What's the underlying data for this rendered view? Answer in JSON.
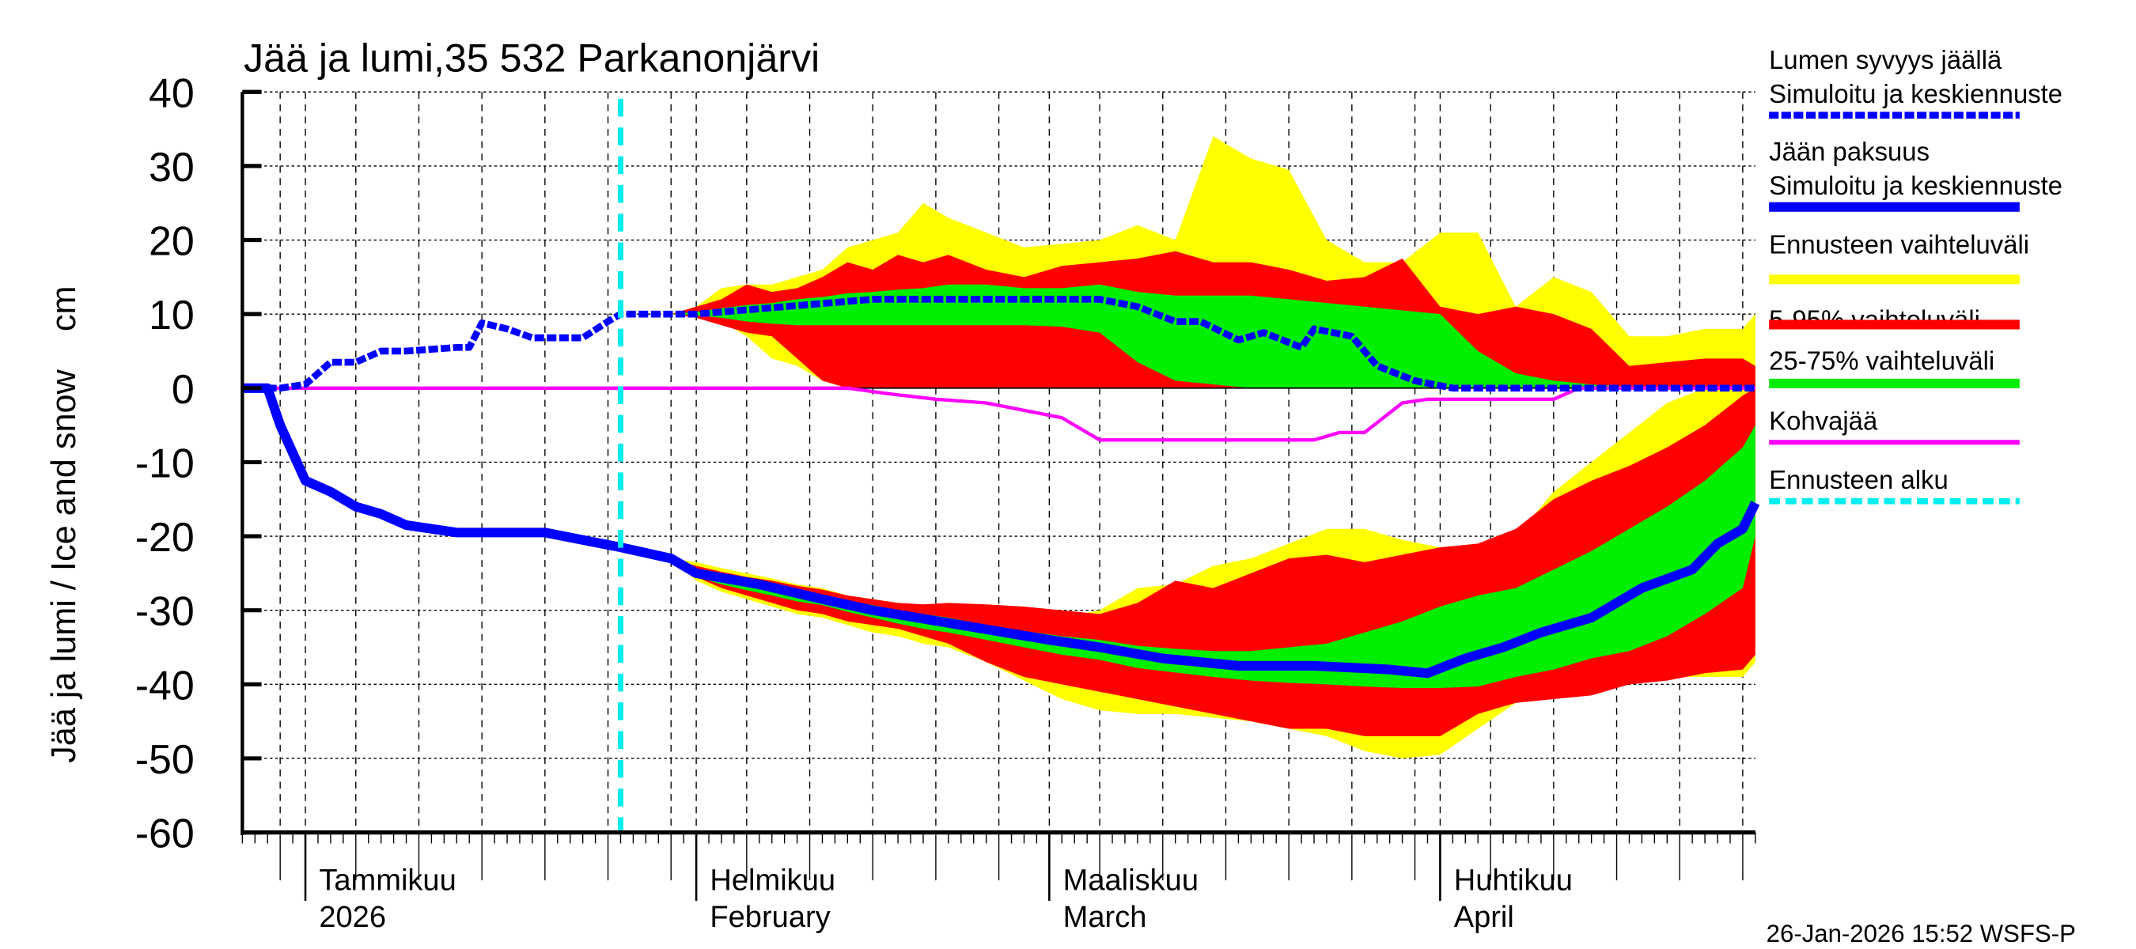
{
  "chart_data": {
    "type": "area",
    "title": "Jää ja lumi,35 532 Parkanonjärvi",
    "ylabel": "Jää ja lumi / Ice and snow    cm",
    "xlabel": "",
    "ylim": [
      -60,
      40
    ],
    "yticks": [
      40,
      30,
      20,
      10,
      0,
      -10,
      -20,
      -30,
      -40,
      -50,
      -60
    ],
    "xlim": [
      "2025-12-27",
      "2026-04-26"
    ],
    "grid": true,
    "legend_position": "right",
    "month_labels": [
      {
        "date": "2026-01-01",
        "line1": "Tammikuu",
        "line2": "2026"
      },
      {
        "date": "2026-02-01",
        "line1": "Helmikuu",
        "line2": "February"
      },
      {
        "date": "2026-03-01",
        "line1": "Maaliskuu",
        "line2": "March"
      },
      {
        "date": "2026-04-01",
        "line1": "Huhtikuu",
        "line2": "April"
      }
    ],
    "forecast_start": "2026-01-26",
    "timestamp": "26-Jan-2026 15:52 WSFS-P",
    "colors": {
      "snow_line": "#0000ff",
      "ice_line": "#0000ff",
      "range_full": "#ffff00",
      "range_5_95": "#ff0000",
      "range_25_75": "#00ee00",
      "kohva": "#ff00ff",
      "forecast_start": "#00eeee"
    },
    "legend": [
      {
        "line1": "Lumen syvyys jäällä",
        "line2": "Simuloitu ja keskiennuste",
        "key": "snow"
      },
      {
        "line1": "Jään paksuus",
        "line2": "Simuloitu ja keskiennuste",
        "key": "ice"
      },
      {
        "line1": "Ennusteen vaihteluväli",
        "key": "range_full"
      },
      {
        "line1": "5-95% vaihteluväli",
        "key": "range_5_95"
      },
      {
        "line1": "25-75% vaihteluväli",
        "key": "range_25_75"
      },
      {
        "line1": "Kohvajää",
        "key": "kohva"
      },
      {
        "line1": "Ennusteen alku",
        "key": "forecast_start"
      }
    ],
    "series": [
      {
        "name": "Lumen syvyys jäällä",
        "key": "snow",
        "x": [
          "2025-12-27",
          "2025-12-30",
          "2026-01-01",
          "2026-01-03",
          "2026-01-05",
          "2026-01-07",
          "2026-01-09",
          "2026-01-13",
          "2026-01-14",
          "2026-01-15",
          "2026-01-17",
          "2026-01-19",
          "2026-01-23",
          "2026-01-25",
          "2026-01-26",
          "2026-02-01",
          "2026-02-15",
          "2026-03-05",
          "2026-03-08",
          "2026-03-11",
          "2026-03-13",
          "2026-03-16",
          "2026-03-18",
          "2026-03-21",
          "2026-03-22",
          "2026-03-25",
          "2026-03-27",
          "2026-03-30",
          "2026-04-02",
          "2026-04-26"
        ],
        "y": [
          0,
          0,
          0.5,
          3.5,
          3.5,
          5,
          5,
          5.5,
          5.5,
          8.8,
          8,
          6.8,
          6.8,
          9,
          10,
          10,
          12,
          12,
          11,
          9,
          9,
          6.5,
          7.5,
          5.5,
          8,
          7,
          3,
          1,
          0,
          0
        ]
      },
      {
        "name": "Jään paksuus",
        "key": "ice",
        "x": [
          "2025-12-27",
          "2025-12-29",
          "2025-12-30",
          "2026-01-01",
          "2026-01-03",
          "2026-01-05",
          "2026-01-07",
          "2026-01-09",
          "2026-01-13",
          "2026-01-20",
          "2026-01-26",
          "2026-01-30",
          "2026-02-01",
          "2026-02-06",
          "2026-02-11",
          "2026-02-15",
          "2026-02-22",
          "2026-03-01",
          "2026-03-05",
          "2026-03-10",
          "2026-03-16",
          "2026-03-22",
          "2026-03-28",
          "2026-03-31",
          "2026-04-03",
          "2026-04-06",
          "2026-04-09",
          "2026-04-13",
          "2026-04-17",
          "2026-04-21",
          "2026-04-23",
          "2026-04-25",
          "2026-04-26"
        ],
        "y": [
          0,
          0,
          -5,
          -12.5,
          -14,
          -16,
          -17,
          -18.5,
          -19.5,
          -19.5,
          -21.5,
          -23,
          -25,
          -26.5,
          -28.5,
          -30,
          -32,
          -34,
          -35,
          -36.5,
          -37.5,
          -37.5,
          -38,
          -38.5,
          -36.5,
          -35,
          -33,
          -31,
          -27,
          -24.5,
          -21,
          -19,
          -15.5
        ]
      },
      {
        "name": "Kohvajää",
        "key": "kohva",
        "x": [
          "2025-12-27",
          "2026-02-13",
          "2026-02-16",
          "2026-02-20",
          "2026-02-24",
          "2026-02-27",
          "2026-03-02",
          "2026-03-05",
          "2026-03-22",
          "2026-03-24",
          "2026-03-26",
          "2026-03-29",
          "2026-03-31",
          "2026-04-10",
          "2026-04-12",
          "2026-04-26"
        ],
        "y": [
          0,
          0,
          -0.7,
          -1.5,
          -2,
          -3,
          -4,
          -7,
          -7,
          -6,
          -6,
          -2,
          -1.5,
          -1.5,
          0,
          0
        ]
      }
    ],
    "bands_x": [
      "2026-01-30",
      "2026-02-01",
      "2026-02-03",
      "2026-02-05",
      "2026-02-07",
      "2026-02-09",
      "2026-02-11",
      "2026-02-13",
      "2026-02-15",
      "2026-02-17",
      "2026-02-19",
      "2026-02-21",
      "2026-02-24",
      "2026-02-27",
      "2026-03-02",
      "2026-03-05",
      "2026-03-08",
      "2026-03-11",
      "2026-03-14",
      "2026-03-17",
      "2026-03-20",
      "2026-03-23",
      "2026-03-26",
      "2026-03-29",
      "2026-04-01",
      "2026-04-04",
      "2026-04-07",
      "2026-04-10",
      "2026-04-13",
      "2026-04-16",
      "2026-04-19",
      "2026-04-22",
      "2026-04-25",
      "2026-04-26"
    ],
    "bands": [
      {
        "name": "Ennusteen vaihteluväli",
        "key": "range_full",
        "group": "snow",
        "upper": [
          10,
          11,
          13.5,
          14,
          14,
          15,
          16,
          19,
          20,
          21,
          25,
          23,
          21,
          19,
          19.5,
          20,
          22,
          20,
          34,
          31,
          29.5,
          20,
          17,
          17,
          21,
          21,
          11,
          15,
          13,
          7,
          7,
          8,
          8,
          10
        ],
        "lower": [
          10,
          9.5,
          9,
          7,
          4,
          3,
          1,
          0,
          0,
          0,
          0,
          0,
          0,
          0,
          0,
          0,
          0,
          0,
          0,
          0,
          0,
          0,
          0,
          0,
          0,
          0,
          0,
          0,
          0,
          0,
          0,
          0,
          0,
          0
        ]
      },
      {
        "name": "5-95% vaihteluväli",
        "key": "range_5_95",
        "group": "snow",
        "upper": [
          10,
          11,
          12,
          14,
          13,
          13.5,
          15,
          17,
          16,
          18,
          17,
          18,
          16,
          15,
          16.5,
          17,
          17.5,
          18.5,
          17,
          17,
          16,
          14.5,
          15,
          17.5,
          11,
          10,
          11,
          10,
          8,
          3,
          3.5,
          4,
          4,
          3
        ],
        "lower": [
          10,
          9.5,
          8.5,
          7.5,
          7,
          4,
          1,
          0,
          0,
          0,
          0,
          0,
          0,
          0,
          0,
          0,
          0,
          0,
          0,
          0,
          0,
          0,
          0,
          0,
          0,
          0,
          0,
          0,
          0,
          0,
          0,
          0,
          0,
          0
        ]
      },
      {
        "name": "25-75% vaihteluväli",
        "key": "range_25_75",
        "group": "snow",
        "upper": [
          10,
          10.3,
          10.8,
          11.2,
          11.5,
          12,
          12.3,
          12.8,
          13,
          13.3,
          13.5,
          14,
          14,
          13.5,
          13.5,
          14,
          13,
          12.5,
          12.5,
          12.5,
          12,
          11.5,
          11,
          10.5,
          10,
          5,
          2,
          1,
          0.5,
          0.2,
          0,
          0,
          0,
          0
        ],
        "lower": [
          10,
          9.8,
          9.5,
          9,
          8.7,
          8.5,
          8.5,
          8.5,
          8.5,
          8.5,
          8.5,
          8.5,
          8.5,
          8.5,
          8.3,
          7.5,
          3.5,
          1,
          0.5,
          0,
          0,
          0,
          0,
          0,
          0,
          0,
          0,
          0,
          0,
          0,
          0,
          0,
          0,
          0
        ]
      },
      {
        "name": "Ennusteen vaihteluväli",
        "key": "range_full",
        "group": "ice",
        "upper": [
          -23,
          -23.5,
          -24.3,
          -25,
          -25.7,
          -26.5,
          -27,
          -28,
          -28.5,
          -29,
          -29.5,
          -29.8,
          -30,
          -30.5,
          -31,
          -30,
          -27,
          -26.5,
          -24,
          -23,
          -21,
          -19,
          -19,
          -20.5,
          -21.5,
          -21.5,
          -20,
          -14,
          -10,
          -6,
          -2,
          0,
          0,
          0
        ],
        "lower": [
          -23,
          -26,
          -27.5,
          -28.5,
          -29.5,
          -30.5,
          -31,
          -32,
          -33,
          -33.5,
          -34.5,
          -35,
          -37,
          -39.5,
          -42,
          -43.5,
          -44,
          -44,
          -44.5,
          -45,
          -46,
          -47,
          -49,
          -50,
          -49.5,
          -46,
          -42.5,
          -41.5,
          -41,
          -39.5,
          -39,
          -39,
          -39,
          -37
        ]
      },
      {
        "name": "5-95% vaihteluväli",
        "key": "range_5_95",
        "group": "ice",
        "upper": [
          -23,
          -24,
          -24.8,
          -25.5,
          -26,
          -26.7,
          -27.2,
          -28,
          -28.5,
          -29,
          -29.2,
          -29,
          -29.2,
          -29.5,
          -30,
          -30.5,
          -29,
          -26,
          -27,
          -25,
          -23,
          -22.5,
          -23.5,
          -22.5,
          -21.5,
          -21,
          -19,
          -15,
          -12.5,
          -10.5,
          -8,
          -5,
          -1,
          0
        ],
        "lower": [
          -23,
          -25.5,
          -27,
          -28,
          -29,
          -30,
          -30.5,
          -31.5,
          -32,
          -32.5,
          -33.5,
          -34.5,
          -37,
          -39,
          -40,
          -41,
          -42,
          -43,
          -44,
          -45,
          -46,
          -46,
          -47,
          -47,
          -47,
          -44,
          -42.5,
          -42,
          -41.5,
          -40,
          -39.5,
          -38.5,
          -38,
          -36
        ]
      },
      {
        "name": "25-75% vaihteluväli",
        "key": "range_25_75",
        "group": "ice",
        "upper": [
          -23,
          -24.5,
          -25.3,
          -26,
          -26.7,
          -27.4,
          -28,
          -28.7,
          -29.3,
          -30,
          -30.5,
          -31,
          -32,
          -32.8,
          -33.5,
          -34,
          -34.8,
          -35.2,
          -35.5,
          -35.5,
          -35,
          -34.5,
          -33,
          -31.5,
          -29.5,
          -28,
          -27,
          -24.5,
          -22,
          -19,
          -16,
          -12.5,
          -8,
          -5
        ],
        "lower": [
          -23,
          -25.5,
          -26.5,
          -27.3,
          -28,
          -28.8,
          -29.3,
          -30.2,
          -31,
          -31.8,
          -32.5,
          -33,
          -34,
          -35,
          -36,
          -36.7,
          -37.8,
          -38.4,
          -39,
          -39.5,
          -39.8,
          -40,
          -40.3,
          -40.5,
          -40.5,
          -40.3,
          -39,
          -38,
          -36.5,
          -35.5,
          -33.5,
          -30.5,
          -27,
          -20
        ]
      }
    ]
  }
}
